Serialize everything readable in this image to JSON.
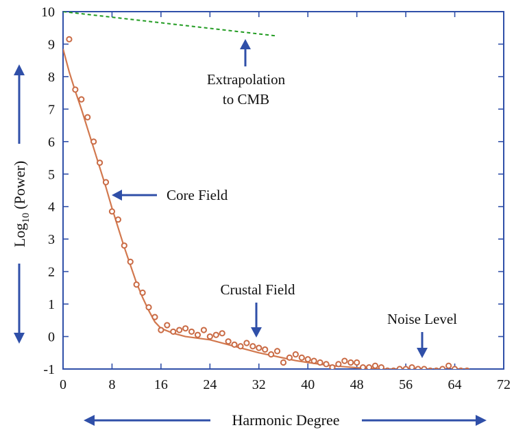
{
  "colors": {
    "frame": "#2f4fa8",
    "arrow": "#2f4fa8",
    "fit": "#d2784e",
    "points": "#c96a44",
    "extrapolation": "#1e9a1e",
    "text": "#111111"
  },
  "axes": {
    "xlabel": "Harmonic Degree",
    "ylabel_prefix": "Log",
    "ylabel_subscript": "10",
    "ylabel_suffix": "(Power)"
  },
  "annotations": {
    "extrapolation_line1": "Extrapolation",
    "extrapolation_line2": "to CMB",
    "core": "Core Field",
    "crustal": "Crustal Field",
    "noise": "Noise Level"
  },
  "chart_data": {
    "type": "scatter",
    "xlim": [
      0,
      72
    ],
    "ylim": [
      -1,
      10
    ],
    "x_ticks": [
      0,
      8,
      16,
      24,
      32,
      40,
      48,
      56,
      64,
      72
    ],
    "y_ticks": [
      -1,
      0,
      1,
      2,
      3,
      4,
      5,
      6,
      7,
      8,
      9,
      10
    ],
    "series": [
      {
        "style": "points",
        "x": [
          1,
          2,
          3,
          4,
          5,
          6,
          7,
          8,
          9,
          10,
          11,
          12,
          13,
          14,
          15,
          16,
          17,
          18,
          19,
          20,
          21,
          22,
          23,
          24,
          25,
          26,
          27,
          28,
          29,
          30,
          31,
          32,
          33,
          34,
          35,
          36,
          37,
          38,
          39,
          40,
          41,
          42,
          43,
          44,
          45,
          46,
          47,
          48,
          49,
          50,
          51,
          52,
          53,
          54,
          55,
          56,
          57,
          58,
          59,
          60,
          61,
          62,
          63,
          64,
          65,
          66
        ],
        "y": [
          9.15,
          7.6,
          7.3,
          6.75,
          6.0,
          5.35,
          4.75,
          3.85,
          3.6,
          2.8,
          2.3,
          1.6,
          1.35,
          0.9,
          0.6,
          0.2,
          0.35,
          0.15,
          0.2,
          0.25,
          0.15,
          0.05,
          0.2,
          0.0,
          0.05,
          0.1,
          -0.15,
          -0.25,
          -0.3,
          -0.2,
          -0.3,
          -0.35,
          -0.4,
          -0.55,
          -0.45,
          -0.8,
          -0.65,
          -0.55,
          -0.65,
          -0.7,
          -0.75,
          -0.8,
          -0.85,
          -0.95,
          -0.85,
          -0.75,
          -0.8,
          -0.8,
          -0.95,
          -0.95,
          -0.9,
          -0.95,
          -1.05,
          -1.05,
          -1.0,
          -1.0,
          -0.95,
          -1.0,
          -1.0,
          -1.05,
          -1.05,
          -1.0,
          -0.9,
          -1.0,
          -1.05,
          -1.05
        ]
      },
      {
        "style": "fit-line",
        "x": [
          0,
          1,
          2,
          3,
          4,
          5,
          6,
          7,
          8,
          9,
          10,
          11,
          12,
          13,
          14,
          15,
          16,
          18,
          20,
          22,
          24,
          26,
          28,
          30,
          32,
          34,
          36,
          38,
          40,
          42,
          44,
          46,
          48,
          50,
          52,
          54,
          56,
          58,
          60,
          62,
          64,
          66
        ],
        "y": [
          8.85,
          8.15,
          7.55,
          7.0,
          6.4,
          5.8,
          5.2,
          4.6,
          3.95,
          3.35,
          2.75,
          2.2,
          1.65,
          1.2,
          0.8,
          0.45,
          0.25,
          0.1,
          0.0,
          -0.05,
          -0.1,
          -0.2,
          -0.3,
          -0.4,
          -0.5,
          -0.58,
          -0.66,
          -0.74,
          -0.8,
          -0.85,
          -0.9,
          -0.93,
          -0.96,
          -0.98,
          -1.0,
          -1.01,
          -1.02,
          -1.03,
          -1.03,
          -1.04,
          -1.04,
          -1.05
        ]
      },
      {
        "style": "dashed-line",
        "x": [
          0,
          35
        ],
        "y": [
          10.0,
          9.25
        ]
      }
    ]
  }
}
